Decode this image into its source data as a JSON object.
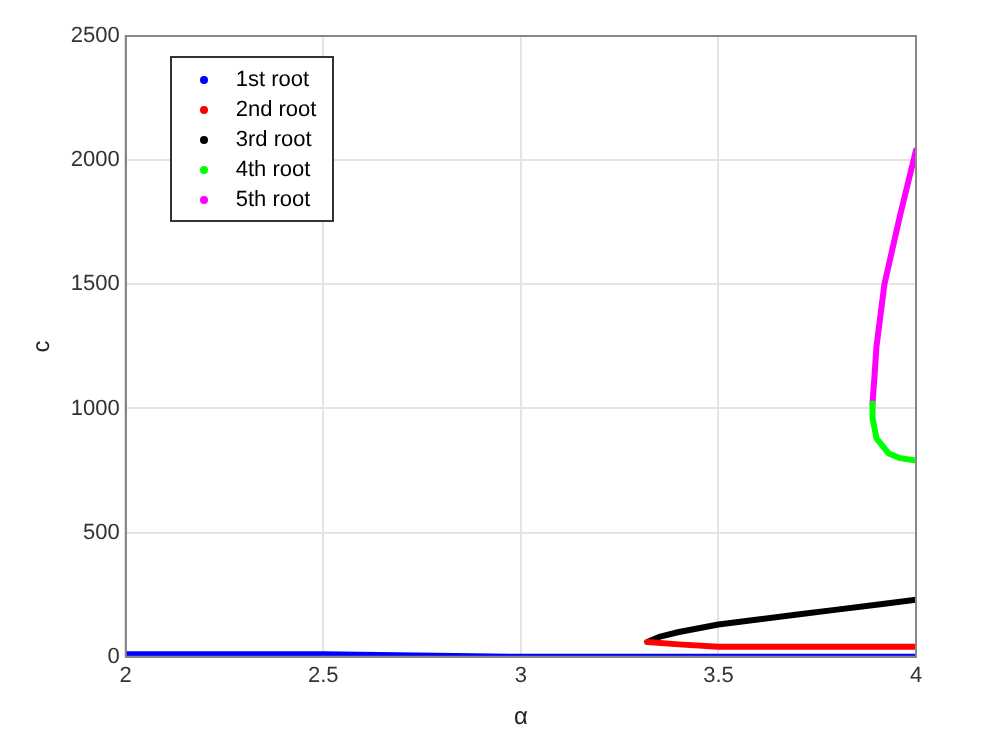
{
  "chart_data": {
    "type": "line",
    "xlabel": "α",
    "ylabel": "c",
    "xlim": [
      2,
      4
    ],
    "xticks": [
      2,
      2.5,
      3,
      3.5,
      4
    ],
    "ylim": [
      0,
      2500
    ],
    "yticks": [
      0,
      500,
      1000,
      1500,
      2000,
      2500
    ],
    "grid": true,
    "legend": "top left",
    "series": [
      {
        "name": "1st root",
        "color": "#0000ff",
        "x": [
          2,
          2.2,
          2.5,
          3,
          3.5,
          4
        ],
        "values": [
          10,
          10,
          10,
          0,
          0,
          0
        ]
      },
      {
        "name": "2nd root",
        "color": "#ff0000",
        "x": [
          3.32,
          3.4,
          3.5,
          3.7,
          3.9,
          4
        ],
        "values": [
          60,
          50,
          40,
          40,
          40,
          40
        ]
      },
      {
        "name": "3rd root",
        "color": "#000000",
        "x": [
          3.32,
          3.35,
          3.4,
          3.5,
          3.6,
          3.7,
          3.8,
          3.9,
          4
        ],
        "values": [
          60,
          80,
          100,
          130,
          150,
          170,
          190,
          210,
          230
        ]
      },
      {
        "name": "4th root",
        "color": "#00ff00",
        "x": [
          3.89,
          3.89,
          3.9,
          3.93,
          3.96,
          4
        ],
        "values": [
          1020,
          960,
          880,
          820,
          800,
          790
        ]
      },
      {
        "name": "5th root",
        "color": "#ff00ff",
        "x": [
          3.89,
          3.895,
          3.9,
          3.92,
          3.96,
          4
        ],
        "values": [
          1020,
          1130,
          1250,
          1500,
          1780,
          2040
        ]
      }
    ]
  }
}
